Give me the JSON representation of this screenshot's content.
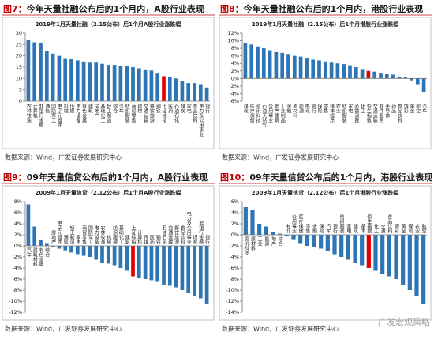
{
  "chart_data": [
    {
      "type": "bar",
      "figure_label": "图7：",
      "header": "今年天量社融公布后的1个月内，A股行业表现",
      "title": "2019年1月天量社融（2.15公布）后1个月A股行业涨跌幅",
      "categories": [
        "农林牧渔",
        "计算机",
        "非银行金融",
        "通信",
        "国防军工",
        "电子元器件",
        "机械",
        "传媒",
        "电力设备",
        "有色金属",
        "建筑",
        "房地产",
        "基础化工",
        "轻工制造",
        "综合",
        "汽车",
        "纺织服装",
        "商贸零售",
        "建材",
        "交通运输",
        "餐饮旅游",
        "钢铁",
        "上证综指",
        "医药",
        "石油石化",
        "煤炭",
        "家电",
        "食品饮料",
        "电力及公用事业",
        "银行"
      ],
      "values": [
        27,
        26,
        25.5,
        22,
        21,
        20,
        19,
        18.5,
        18,
        17.5,
        17,
        17,
        16.5,
        16,
        16,
        15.5,
        15.5,
        15,
        14.5,
        14,
        13.5,
        12.5,
        11,
        10.5,
        10,
        9,
        8,
        8,
        7.5,
        6
      ],
      "color": "#2e75b6",
      "highlight_category": "上证综指",
      "highlight_color": "#e00000",
      "ylim": [
        0,
        30
      ],
      "yticks": [
        0,
        5,
        10,
        15,
        20,
        25,
        30
      ],
      "source": "数据来源：Wind，广发证券发展研究中心"
    },
    {
      "type": "bar",
      "figure_label": "图8：",
      "header": "今年天量社融公布后的1个月内，港股行业表现",
      "title": "2019年1月天量社融（2.15公布）后1个月港股行业涨跌幅",
      "categories": [
        "煤炭",
        "医疗保健",
        "资讯科技",
        "石油天然气",
        "公用事业",
        "地产建筑",
        "工业制品",
        "金融",
        "原材料",
        "能源",
        "电讯",
        "银行",
        "保险",
        "零售",
        "媒体娱乐",
        "农业",
        "纺织服装",
        "家电",
        "必需消费",
        "化工",
        "恒生指数",
        "交通运输",
        "软件服务",
        "半导体",
        "药品",
        "食品饮料",
        "博彩",
        "黄金",
        "航空",
        "汽车"
      ],
      "values": [
        9.5,
        9,
        8.5,
        8,
        7.5,
        7,
        6.8,
        6.5,
        6,
        5.8,
        5.5,
        5,
        4.8,
        4.5,
        4.2,
        4,
        3.8,
        3.5,
        3,
        2.5,
        2,
        1.8,
        1.5,
        1.2,
        1,
        0.5,
        0.3,
        -0.5,
        -1.5,
        -3.5
      ],
      "color": "#2e75b6",
      "highlight_category": "恒生指数",
      "highlight_color": "#e00000",
      "ylim": [
        -6,
        12
      ],
      "yticks": [
        {
          "value": -6,
          "label": "-6%"
        },
        {
          "value": -4,
          "label": "-4%"
        },
        {
          "value": -2,
          "label": "-2%"
        },
        {
          "value": 0,
          "label": "0%"
        },
        {
          "value": 2,
          "label": "2%"
        },
        {
          "value": 4,
          "label": "4%"
        },
        {
          "value": 6,
          "label": "6%"
        },
        {
          "value": 8,
          "label": "8%"
        },
        {
          "value": 10,
          "label": "10%"
        },
        {
          "value": 12,
          "label": "12%"
        }
      ],
      "source": "数据来源：Wind，广发证券发展研究中心"
    },
    {
      "type": "bar",
      "figure_label": "图9：",
      "header": "09年天量信贷公布后的1个月内，A股行业表现",
      "title": "2009年1月天量信贷（2.12公布）后1个月A股行业涨跌幅",
      "categories": [
        "汽车",
        "建筑材料",
        "有色金属",
        "综合",
        "房地产",
        "电子元器件",
        "通信",
        "轻工制造",
        "家电",
        "商贸零售",
        "国防军工",
        "电力设备",
        "农林牧渔",
        "机械",
        "纺织服装",
        "基础化工",
        "建筑",
        "上证综指",
        "计算机",
        "传媒",
        "医药",
        "钢铁",
        "石油石化",
        "交通运输",
        "餐饮旅游",
        "食品饮料",
        "电力及公用事业",
        "煤炭",
        "非银行金融",
        "银行"
      ],
      "values": [
        7.5,
        3.5,
        1,
        0.5,
        -0.2,
        -0.5,
        -0.8,
        -1.2,
        -1.5,
        -1.8,
        -2,
        -2.5,
        -3,
        -3.2,
        -3.5,
        -4,
        -4.5,
        -5.5,
        -5.8,
        -6,
        -6.2,
        -6.5,
        -7,
        -7.2,
        -7.5,
        -8,
        -8.5,
        -9,
        -9.5,
        -10.5
      ],
      "color": "#2e75b6",
      "highlight_category": "上证综指",
      "highlight_color": "#e00000",
      "ylim": [
        -12,
        8
      ],
      "yticks": [
        {
          "value": -12,
          "label": "-12%"
        },
        {
          "value": -10,
          "label": "-10%"
        },
        {
          "value": -8,
          "label": "-8%"
        },
        {
          "value": -6,
          "label": "-6%"
        },
        {
          "value": -4,
          "label": "-4%"
        },
        {
          "value": -2,
          "label": "-2%"
        },
        {
          "value": 0,
          "label": "0%"
        },
        {
          "value": 2,
          "label": "2%"
        },
        {
          "value": 4,
          "label": "4%"
        },
        {
          "value": 6,
          "label": "6%"
        },
        {
          "value": 8,
          "label": "8%"
        }
      ],
      "source": "数据来源：Wind，广发证券发展研究中心"
    },
    {
      "type": "bar",
      "figure_label": "图10：",
      "header": "09年天量信贷公布后的1个月内，港股行业表现",
      "title": "2009年1月天量信贷（2.12公布）后1个月港股行业涨跌幅",
      "categories": [
        "资讯科技",
        "原材料",
        "工业",
        "能源",
        "地产",
        "综合",
        "电讯",
        "公用事业",
        "医疗保健",
        "零售",
        "金融",
        "保险",
        "汽车",
        "银行",
        "纺织服装",
        "家电",
        "建筑",
        "媒体",
        "恒生指数",
        "化工",
        "交通",
        "食品饮料",
        "博彩",
        "黄金",
        "煤炭",
        "农业",
        "航空"
      ],
      "values": [
        5,
        4.5,
        2,
        1.5,
        0.5,
        0.2,
        -0.3,
        -0.8,
        -1.5,
        -2,
        -2.2,
        -2.5,
        -3,
        -3.5,
        -4,
        -4.5,
        -5,
        -5.5,
        -6,
        -6.5,
        -7,
        -7.5,
        -8,
        -9,
        -10,
        -11,
        -12.5
      ],
      "color": "#2e75b6",
      "highlight_category": "恒生指数",
      "highlight_color": "#e00000",
      "ylim": [
        -14,
        6
      ],
      "yticks": [
        {
          "value": -14,
          "label": "-14%"
        },
        {
          "value": -12,
          "label": "-12%"
        },
        {
          "value": -10,
          "label": "-10%"
        },
        {
          "value": -8,
          "label": "-8%"
        },
        {
          "value": -6,
          "label": "-6%"
        },
        {
          "value": -4,
          "label": "-4%"
        },
        {
          "value": -2,
          "label": "-2%"
        },
        {
          "value": 0,
          "label": "0%"
        },
        {
          "value": 2,
          "label": "2%"
        },
        {
          "value": 4,
          "label": "4%"
        },
        {
          "value": 6,
          "label": "6%"
        }
      ],
      "source": "数据来源：Wind，广发证券发展研究中心"
    }
  ],
  "watermark": "广发宏观策略"
}
